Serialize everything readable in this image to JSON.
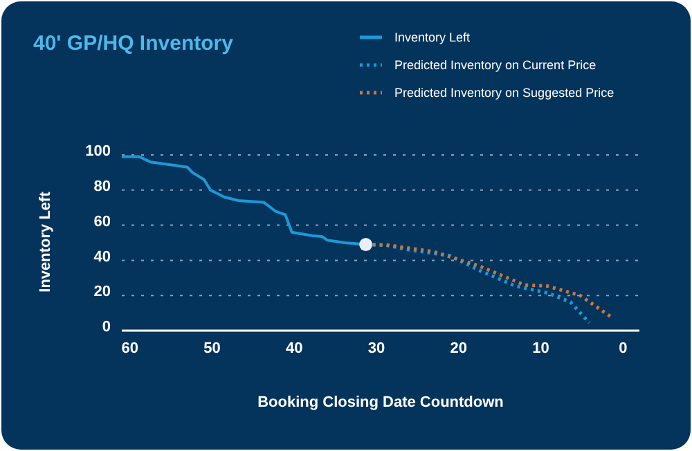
{
  "chart_data": {
    "type": "line",
    "title": "40' GP/HQ Inventory",
    "xlabel": "Booking Closing Date Countdown",
    "ylabel": "Inventory Left",
    "xlim": [
      61,
      -2
    ],
    "xticks": [
      60,
      50,
      40,
      30,
      20,
      10,
      0
    ],
    "ylim": [
      0,
      100
    ],
    "yticks": [
      0,
      20,
      40,
      60,
      80,
      100
    ],
    "grid": "y",
    "legend": "top right",
    "series": [
      {
        "name": "Inventory Left",
        "color": "#1a9ad6",
        "line_style": "solid",
        "x": [
          61,
          58.9,
          57.5,
          55.2,
          53,
          52.4,
          51,
          50.2,
          48.5,
          46.8,
          43.7,
          42.3,
          41.1,
          40.3,
          37.8,
          36.6,
          36,
          33.8,
          31.3
        ],
        "values": [
          99,
          99,
          96,
          94.5,
          93,
          90,
          86,
          80,
          76,
          74,
          73,
          68,
          66,
          56,
          54,
          53.5,
          51.5,
          50,
          49
        ]
      },
      {
        "name": "Predicted Inventory on Current Price",
        "color": "#1a9ad6",
        "line_style": "dotted",
        "x": [
          31.3,
          28.8,
          26,
          21,
          17.6,
          13.1,
          9.2,
          6.4,
          4.1
        ],
        "values": [
          49,
          48.6,
          46,
          42.6,
          34.6,
          25.4,
          21.5,
          16.3,
          4.5
        ]
      },
      {
        "name": "Predicted Inventory on Suggested Price",
        "color": "#c9773f",
        "line_style": "dotted",
        "x": [
          31.3,
          28.8,
          23.1,
          17.6,
          12,
          9.2,
          5.2,
          1.2
        ],
        "values": [
          49,
          48.8,
          45,
          37,
          26,
          25.4,
          20,
          7
        ]
      },
      {
        "type": "scatter",
        "color": "#e8eef5",
        "marker": "circle",
        "x": [
          31.3
        ],
        "values": [
          49
        ]
      }
    ]
  }
}
